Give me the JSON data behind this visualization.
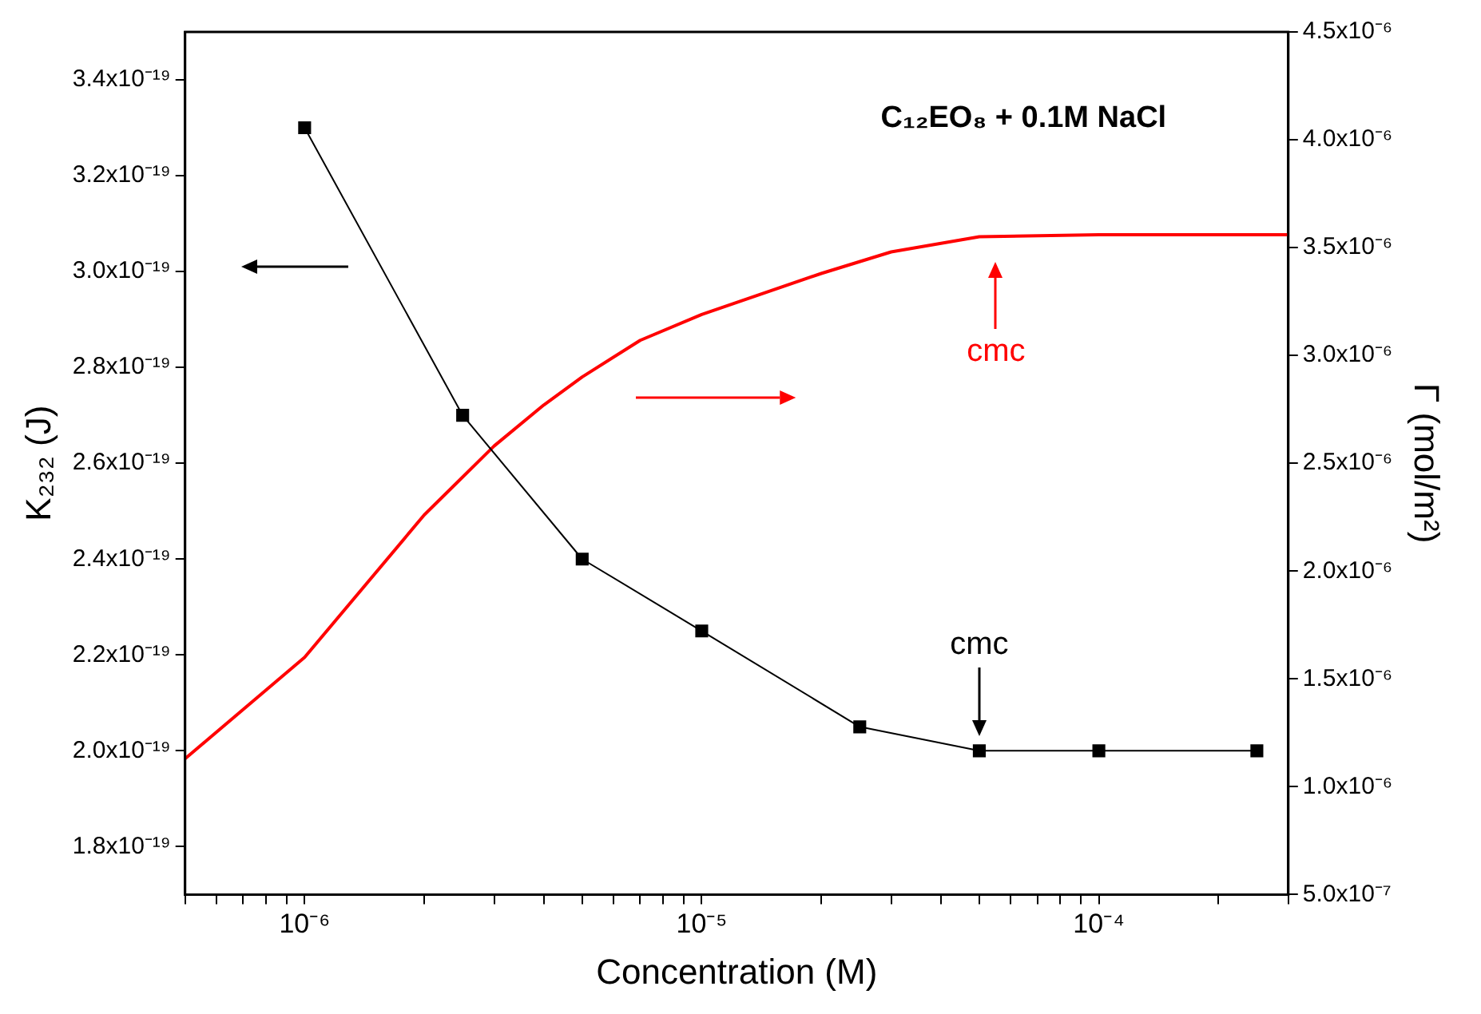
{
  "chart_data": {
    "type": "line",
    "title": "C₁₂EO₈ + 0.1M NaCl",
    "xlabel": "Concentration (M)",
    "ylabel": "K₂₃₂ (J)",
    "y2label": "Γ (mol/m²)",
    "log": "x",
    "grid": false,
    "legend": false,
    "xlim": [
      5e-07,
      0.0003
    ],
    "xticks": [
      {
        "value": 5e-07,
        "label": null
      },
      {
        "value": 6e-07,
        "label": null
      },
      {
        "value": 7e-07,
        "label": null
      },
      {
        "value": 8e-07,
        "label": null
      },
      {
        "value": 9e-07,
        "label": null
      },
      {
        "value": 1e-06,
        "label": "10⁻⁶"
      },
      {
        "value": 2e-06,
        "label": null
      },
      {
        "value": 3e-06,
        "label": null
      },
      {
        "value": 4e-06,
        "label": null
      },
      {
        "value": 5e-06,
        "label": null
      },
      {
        "value": 6e-06,
        "label": null
      },
      {
        "value": 7e-06,
        "label": null
      },
      {
        "value": 8e-06,
        "label": null
      },
      {
        "value": 9e-06,
        "label": null
      },
      {
        "value": 1e-05,
        "label": "10⁻⁵"
      },
      {
        "value": 2e-05,
        "label": null
      },
      {
        "value": 3e-05,
        "label": null
      },
      {
        "value": 4e-05,
        "label": null
      },
      {
        "value": 5e-05,
        "label": null
      },
      {
        "value": 6e-05,
        "label": null
      },
      {
        "value": 7e-05,
        "label": null
      },
      {
        "value": 8e-05,
        "label": null
      },
      {
        "value": 9e-05,
        "label": null
      },
      {
        "value": 0.0001,
        "label": "10⁻⁴"
      },
      {
        "value": 0.0002,
        "label": null
      },
      {
        "value": 0.0003,
        "label": null
      }
    ],
    "ylim": [
      1.7e-19,
      3.5e-19
    ],
    "yticks": [
      {
        "value": 1.8e-19,
        "label": "1.8x10⁻¹⁹"
      },
      {
        "value": 2e-19,
        "label": "2.0x10⁻¹⁹"
      },
      {
        "value": 2.2e-19,
        "label": "2.2x10⁻¹⁹"
      },
      {
        "value": 2.4e-19,
        "label": "2.4x10⁻¹⁹"
      },
      {
        "value": 2.6e-19,
        "label": "2.6x10⁻¹⁹"
      },
      {
        "value": 2.8e-19,
        "label": "2.8x10⁻¹⁹"
      },
      {
        "value": 3e-19,
        "label": "3.0x10⁻¹⁹"
      },
      {
        "value": 3.2e-19,
        "label": "3.2x10⁻¹⁹"
      },
      {
        "value": 3.4e-19,
        "label": "3.4x10⁻¹⁹"
      }
    ],
    "y2lim": [
      5e-07,
      4.5e-06
    ],
    "y2ticks": [
      {
        "value": 5e-07,
        "label": "5.0x10⁻⁷"
      },
      {
        "value": 1e-06,
        "label": "1.0x10⁻⁶"
      },
      {
        "value": 1.5e-06,
        "label": "1.5x10⁻⁶"
      },
      {
        "value": 2e-06,
        "label": "2.0x10⁻⁶"
      },
      {
        "value": 2.5e-06,
        "label": "2.5x10⁻⁶"
      },
      {
        "value": 3e-06,
        "label": "3.0x10⁻⁶"
      },
      {
        "value": 3.5e-06,
        "label": "3.5x10⁻⁶"
      },
      {
        "value": 4e-06,
        "label": "4.0x10⁻⁶"
      },
      {
        "value": 4.5e-06,
        "label": "4.5x10⁻⁶"
      }
    ],
    "series": [
      {
        "color": "#000000",
        "marker": "square",
        "x": [
          1e-06,
          2.5e-06,
          5e-06,
          1e-05,
          2.5e-05,
          5e-05,
          0.0001,
          0.00025
        ],
        "values": [
          3.3e-19,
          2.7e-19,
          2.4e-19,
          2.25e-19,
          2.05e-19,
          2e-19,
          2e-19,
          2e-19
        ]
      },
      {
        "color": "#ff0000",
        "marker": "none",
        "axis": "y2",
        "x": [
          5e-07,
          1e-06,
          2e-06,
          3e-06,
          4e-06,
          5e-06,
          7e-06,
          1e-05,
          2e-05,
          3e-05,
          5e-05,
          0.0001,
          0.0003
        ],
        "values": [
          1.13e-06,
          1.6e-06,
          2.26e-06,
          2.58e-06,
          2.77e-06,
          2.9e-06,
          3.07e-06,
          3.19e-06,
          3.38e-06,
          3.48e-06,
          3.55e-06,
          3.56e-06,
          3.56e-06
        ]
      }
    ],
    "annotations": [
      {
        "text": "cmc",
        "x": 5e-05,
        "y": 2e-19
      },
      "cmc"
    ]
  }
}
